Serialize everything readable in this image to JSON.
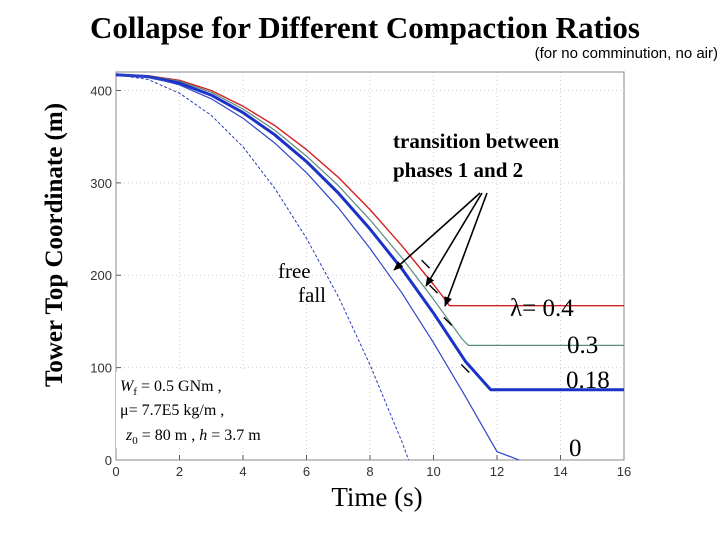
{
  "chart_data": {
    "type": "line",
    "title": "Collapse for Different Compaction Ratios",
    "subtitle": "(for no comminution, no air)",
    "xlabel": "Time (s)",
    "ylabel": "Tower Top Coordinate (m)",
    "xlim": [
      0,
      16
    ],
    "ylim": [
      0,
      420
    ],
    "xticks": [
      "0",
      "2",
      "4",
      "6",
      "8",
      "10",
      "12",
      "14",
      "16"
    ],
    "yticks": [
      "0",
      "100",
      "200",
      "300",
      "400"
    ],
    "grid": true,
    "series": [
      {
        "name": "λ= 0.4",
        "color": "#d42020",
        "width": 1.4,
        "dash": "",
        "x": [
          0,
          1,
          2,
          3,
          4,
          5,
          6,
          7,
          8,
          9,
          10,
          10.4,
          10.5,
          16
        ],
        "y": [
          417,
          416,
          411,
          400,
          383,
          362,
          336,
          306,
          271,
          232,
          190,
          172,
          167,
          167
        ]
      },
      {
        "name": "0.3",
        "color": "#5a8a80",
        "width": 1.2,
        "dash": "",
        "x": [
          0,
          1,
          2,
          3,
          4,
          5,
          6,
          7,
          8,
          9,
          10,
          10.9,
          11.1,
          16
        ],
        "y": [
          417,
          416,
          410,
          398,
          380,
          357,
          329,
          297,
          260,
          219,
          174,
          131,
          124,
          124
        ]
      },
      {
        "name": "0.18",
        "color": "#1a32c8",
        "width": 3,
        "dash": "",
        "x": [
          0,
          1,
          2,
          3,
          4,
          5,
          6,
          7,
          8,
          9,
          10,
          11,
          11.8,
          16
        ],
        "y": [
          417,
          415,
          408,
          395,
          376,
          352,
          323,
          289,
          250,
          207,
          159,
          107,
          76,
          76
        ]
      },
      {
        "name": "0",
        "color": "#3046c8",
        "width": 1.2,
        "dash": "",
        "x": [
          0,
          1,
          2,
          3,
          4,
          5,
          6,
          7,
          8,
          9,
          10,
          11,
          12,
          12.7
        ],
        "y": [
          417,
          415,
          406,
          391,
          370,
          343,
          311,
          273,
          229,
          181,
          127,
          69,
          9,
          0
        ]
      },
      {
        "name": "free fall",
        "color": "#2a3cc0",
        "width": 1,
        "dash": "3,2",
        "x": [
          0,
          1,
          2,
          3,
          4,
          5,
          6,
          7,
          8,
          9,
          9.22
        ],
        "y": [
          417,
          412,
          397,
          373,
          339,
          294,
          240,
          177,
          103,
          20,
          0
        ]
      }
    ],
    "transition_markers": [
      {
        "x": 9.75,
        "y": 212
      },
      {
        "x": 10.0,
        "y": 185
      },
      {
        "x": 10.45,
        "y": 150
      },
      {
        "x": 11.0,
        "y": 99
      }
    ],
    "annotations": {
      "transition_line1": "transition between",
      "transition_line2": "phases 1 and 2",
      "free_line1": "free",
      "free_line2": "fall",
      "lambda_label": "λ= 0.4",
      "label_03": "0.3",
      "label_018": "0.18",
      "label_0": "0",
      "params_line1": "W",
      "params_line1_sub": "f",
      "params_line1_rest": " = 0.5 GNm ,",
      "params_line2": "μ= 7.7E5 kg/m ,",
      "params_line3_a": "z",
      "params_line3_sub": "0",
      "params_line3_b": " = 80 m , ",
      "params_line3_h": "h",
      "params_line3_c": " = 3.7 m"
    }
  }
}
